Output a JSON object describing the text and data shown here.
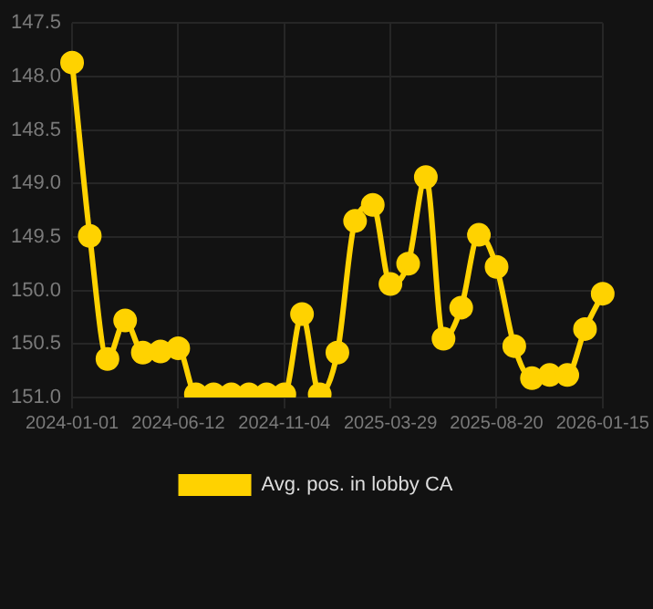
{
  "chart_data": {
    "type": "line",
    "categories": [
      "2024-01-01",
      null,
      null,
      null,
      null,
      null,
      "2024-06-12",
      null,
      null,
      null,
      null,
      null,
      "2024-11-04",
      null,
      null,
      null,
      null,
      null,
      "2025-03-29",
      null,
      null,
      null,
      null,
      null,
      "2025-08-20",
      null,
      null,
      null,
      null,
      null,
      "2026-01-15"
    ],
    "series": [
      {
        "name": "Avg. pos. in lobby CA",
        "color": "#ffd200",
        "values": [
          147.87,
          149.49,
          150.64,
          150.28,
          150.58,
          150.57,
          150.54,
          150.97,
          150.97,
          150.97,
          150.97,
          150.97,
          150.97,
          150.22,
          150.97,
          150.58,
          149.35,
          149.2,
          149.94,
          149.75,
          148.94,
          150.45,
          150.16,
          149.48,
          149.78,
          150.52,
          150.82,
          150.79,
          150.79,
          150.36,
          150.03
        ]
      }
    ],
    "ylim": [
      151.0,
      147.5
    ],
    "yticks": [
      {
        "value": 147.5,
        "label": "147.5"
      },
      {
        "value": 148,
        "label": "148.0"
      },
      {
        "value": 148.5,
        "label": "148.5"
      },
      {
        "value": 149,
        "label": "149.0"
      },
      {
        "value": 149.5,
        "label": "149.5"
      },
      {
        "value": 150,
        "label": "150.0"
      },
      {
        "value": 150.5,
        "label": "150.5"
      },
      {
        "value": 151,
        "label": "151.0"
      }
    ],
    "grid": true,
    "legend": "bottom",
    "marker": "circle",
    "line_style": "solid"
  }
}
